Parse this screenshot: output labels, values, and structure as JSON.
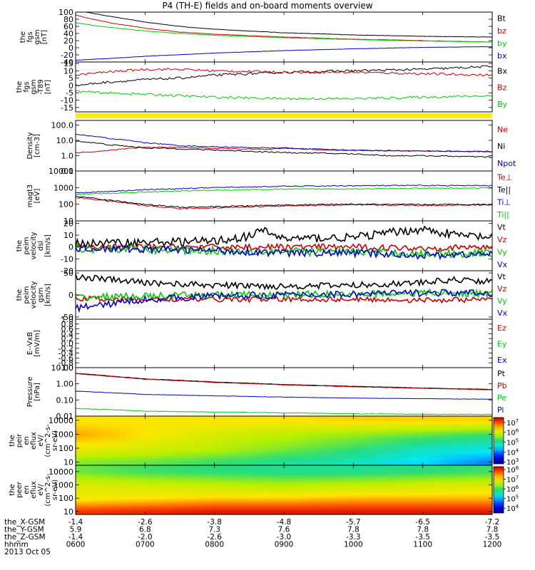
{
  "title": "P4 (TH-E) fields and on-board moments overview",
  "chart_data": [
    {
      "type": "line",
      "ylabel": [
        "the",
        "fgs",
        "gsm",
        "[nT]"
      ],
      "yticks": [
        -40,
        -20,
        0,
        20,
        40,
        60,
        80,
        100
      ],
      "ylim": [
        -40,
        100
      ],
      "series": [
        {
          "name": "Bt",
          "color": "#000000",
          "x": [
            600,
            620,
            650,
            700,
            750,
            800,
            900,
            1000,
            1100,
            1200
          ],
          "y": [
            105,
            98,
            88,
            72,
            60,
            52,
            42,
            36,
            32,
            30
          ],
          "noise": 0.5
        },
        {
          "name": "bz",
          "color": "#cc0000",
          "x": [
            600,
            620,
            650,
            700,
            750,
            800,
            900,
            1000,
            1100,
            1200
          ],
          "y": [
            92,
            82,
            70,
            55,
            44,
            38,
            30,
            24,
            20,
            16
          ],
          "noise": 0.5
        },
        {
          "name": "by",
          "color": "#00cc00",
          "x": [
            600,
            620,
            650,
            700,
            750,
            800,
            900,
            1000,
            1100,
            1200
          ],
          "y": [
            70,
            64,
            57,
            47,
            40,
            35,
            28,
            23,
            19,
            16
          ],
          "noise": 0.5
        },
        {
          "name": "bx",
          "color": "#0000cc",
          "x": [
            600,
            650,
            700,
            800,
            900,
            1000,
            1100,
            1200
          ],
          "y": [
            -35,
            -30,
            -24,
            -15,
            -8,
            -3,
            1,
            3
          ],
          "noise": 0.4
        }
      ]
    },
    {
      "type": "line",
      "ylabel": [
        "the",
        "fgs",
        "gsm",
        "-T89",
        "[nT]"
      ],
      "yticks": [
        -15,
        -10,
        -5,
        0,
        5,
        10,
        15
      ],
      "ylim": [
        -18,
        16
      ],
      "series": [
        {
          "name": "Bx",
          "color": "#000000",
          "x": [
            600,
            640,
            700,
            750,
            800,
            900,
            1000,
            1100,
            1200
          ],
          "y": [
            0,
            2,
            4,
            5,
            7,
            9,
            10,
            11,
            13
          ],
          "noise": 0.8
        },
        {
          "name": "Bz",
          "color": "#cc0000",
          "x": [
            600,
            640,
            700,
            750,
            800,
            900,
            1000,
            1100,
            1200
          ],
          "y": [
            7,
            9,
            11,
            11,
            10,
            9,
            9,
            8,
            7
          ],
          "noise": 0.8
        },
        {
          "name": "By",
          "color": "#00cc00",
          "x": [
            600,
            640,
            700,
            800,
            900,
            1000,
            1100,
            1200
          ],
          "y": [
            -4,
            -5,
            -6,
            -8,
            -9,
            -9,
            -8,
            -7
          ],
          "noise": 0.8
        }
      ]
    },
    {
      "type": "line",
      "log": true,
      "ylabel": [
        "Density",
        "[cm-3]"
      ],
      "ytick_labels": [
        "0.1",
        "1.0",
        "10.0",
        "100.0"
      ],
      "ytick_values": [
        0.1,
        1,
        10,
        100
      ],
      "ylim": [
        0.1,
        200
      ],
      "series": [
        {
          "name": "Ne",
          "color": "#cc0000",
          "x": [
            600,
            630,
            700,
            750,
            800,
            880,
            900,
            950,
            1000,
            1100,
            1200
          ],
          "y": [
            1.6,
            1.8,
            3.5,
            3.5,
            3.0,
            2.5,
            3.3,
            2.4,
            2.2,
            2.0,
            1.9
          ],
          "noise": 0.03
        },
        {
          "name": "Ni",
          "color": "#000000",
          "x": [
            600,
            650,
            700,
            750,
            800,
            900,
            1000,
            1050,
            1100,
            1150,
            1200
          ],
          "y": [
            9,
            5,
            3.2,
            2.8,
            2.3,
            1.6,
            1.3,
            1.0,
            1.0,
            0.9,
            0.8
          ],
          "noise": 0.04
        },
        {
          "name": "Npot",
          "color": "#0000cc",
          "x": [
            600,
            650,
            700,
            750,
            800,
            900,
            1000,
            1100,
            1200
          ],
          "y": [
            24,
            13,
            7,
            4.5,
            3.8,
            3.0,
            2.3,
            2.0,
            1.8
          ],
          "noise": 0.03
        }
      ]
    },
    {
      "type": "line",
      "log": true,
      "ylabel": [
        "magt3",
        "[eV]"
      ],
      "ytick_labels": [
        "10",
        "100",
        "1000",
        "10000"
      ],
      "ytick_values": [
        10,
        100,
        1000,
        10000
      ],
      "ylim": [
        10,
        10000
      ],
      "series": [
        {
          "name": "Te⊥",
          "color": "#cc0000",
          "x": [
            600,
            650,
            700,
            750,
            800,
            900,
            1000,
            1100,
            1200
          ],
          "y": [
            250,
            150,
            80,
            55,
            60,
            80,
            90,
            85,
            90
          ],
          "noise": 0.04
        },
        {
          "name": "Te||",
          "color": "#000000",
          "x": [
            600,
            650,
            700,
            750,
            800,
            900,
            1000,
            1100,
            1200
          ],
          "y": [
            300,
            170,
            95,
            65,
            70,
            90,
            100,
            95,
            100
          ],
          "noise": 0.04
        },
        {
          "name": "Ti⊥",
          "color": "#0000cc",
          "x": [
            600,
            650,
            700,
            800,
            900,
            1000,
            1100,
            1200
          ],
          "y": [
            480,
            600,
            750,
            1000,
            1200,
            1300,
            1350,
            1300
          ],
          "noise": 0.03
        },
        {
          "name": "Ti||",
          "color": "#00cc00",
          "x": [
            600,
            650,
            700,
            800,
            900,
            1000,
            1100,
            1200
          ],
          "y": [
            400,
            450,
            550,
            700,
            800,
            850,
            900,
            950
          ],
          "noise": 0.03
        }
      ]
    },
    {
      "type": "line",
      "ylabel": [
        "the",
        "peim",
        "velocity",
        "dsl",
        "[km/s]"
      ],
      "yticks": [
        -20,
        -10,
        0,
        10,
        20
      ],
      "ylim": [
        -20,
        22
      ],
      "series": [
        {
          "name": "Vt",
          "color": "#000000",
          "x": [
            600,
            700,
            800,
            850,
            870,
            900,
            1000,
            1050,
            1100,
            1150,
            1200
          ],
          "y": [
            3,
            4,
            5,
            9,
            14,
            7,
            8,
            12,
            15,
            10,
            8
          ],
          "noise": 3.5
        },
        {
          "name": "Vz",
          "color": "#cc0000",
          "x": [
            600,
            700,
            800,
            900,
            1000,
            1100,
            1200
          ],
          "y": [
            0,
            0,
            0,
            0,
            0,
            -1,
            0
          ],
          "noise": 2.5
        },
        {
          "name": "Vy",
          "color": "#00cc00",
          "x": [
            600,
            700,
            800,
            900,
            1000,
            1100,
            1200
          ],
          "y": [
            -1,
            -2,
            -3,
            -4,
            -4,
            -6,
            -5
          ],
          "noise": 3.5
        },
        {
          "name": "Vx",
          "color": "#0000cc",
          "x": [
            600,
            700,
            800,
            900,
            1000,
            1100,
            1200
          ],
          "y": [
            -1,
            -2,
            -3,
            -5,
            -5,
            -7,
            -6
          ],
          "noise": 3.0
        }
      ]
    },
    {
      "type": "line",
      "ylabel": [
        "the",
        "peim",
        "velocity",
        "gsm",
        "[km/s]"
      ],
      "yticks": [
        -50,
        0,
        50
      ],
      "ylim": [
        -55,
        55
      ],
      "series": [
        {
          "name": "Vt",
          "color": "#000000",
          "x": [
            600,
            650,
            700,
            800,
            900,
            1000,
            1100,
            1150,
            1200
          ],
          "y": [
            42,
            35,
            28,
            22,
            20,
            22,
            28,
            35,
            30
          ],
          "noise": 7
        },
        {
          "name": "Vz",
          "color": "#cc0000",
          "x": [
            600,
            700,
            800,
            900,
            1000,
            1100,
            1200
          ],
          "y": [
            -8,
            -10,
            -10,
            -10,
            -10,
            -12,
            -10
          ],
          "noise": 6
        },
        {
          "name": "Vy",
          "color": "#00cc00",
          "x": [
            600,
            700,
            800,
            900,
            1000,
            1100,
            1200
          ],
          "y": [
            -5,
            -3,
            0,
            0,
            2,
            5,
            3
          ],
          "noise": 8
        },
        {
          "name": "Vx",
          "color": "#0000cc",
          "x": [
            600,
            650,
            700,
            800,
            900,
            1000,
            1100,
            1200
          ],
          "y": [
            -30,
            -20,
            -10,
            -2,
            0,
            2,
            5,
            3
          ],
          "noise": 8
        }
      ]
    },
    {
      "type": "line",
      "ylabel": [
        "E--VxB",
        "[mV/m]"
      ],
      "yticks": [
        -1.0,
        -0.8,
        -0.6,
        -0.4,
        -0.2,
        0.0,
        0.2,
        0.4,
        0.6,
        0.8,
        1.0
      ],
      "ylim": [
        -1,
        1
      ],
      "series": [
        {
          "name": "Ez",
          "color": "#cc0000",
          "x": [],
          "y": []
        },
        {
          "name": "Ey",
          "color": "#00cc00",
          "x": [],
          "y": []
        },
        {
          "name": "Ex",
          "color": "#0000cc",
          "x": [],
          "y": []
        }
      ]
    },
    {
      "type": "line",
      "log": true,
      "ylabel": [
        "Pressure",
        "[nPa]"
      ],
      "ytick_labels": [
        "0.01",
        "0.10",
        "1.00",
        "10.00"
      ],
      "ytick_values": [
        0.01,
        0.1,
        1,
        10
      ],
      "ylim": [
        0.01,
        10
      ],
      "series": [
        {
          "name": "Pt",
          "color": "#000000",
          "x": [
            600,
            650,
            700,
            800,
            900,
            1000,
            1100,
            1200
          ],
          "y": [
            4.5,
            3.0,
            2.0,
            1.3,
            0.9,
            0.7,
            0.55,
            0.45
          ],
          "noise": 0.01
        },
        {
          "name": "Pb",
          "color": "#cc0000",
          "x": [
            600,
            650,
            700,
            800,
            900,
            1000,
            1100,
            1200
          ],
          "y": [
            4.2,
            2.8,
            1.9,
            1.2,
            0.85,
            0.65,
            0.52,
            0.42
          ],
          "noise": 0.01
        },
        {
          "name": "Pe",
          "color": "#00cc00",
          "x": [
            600,
            650,
            700,
            800,
            900,
            1000,
            1100,
            1200
          ],
          "y": [
            0.03,
            0.025,
            0.02,
            0.018,
            0.016,
            0.014,
            0.013,
            0.013
          ],
          "noise": 0.02
        },
        {
          "name": "Pi",
          "color": "#0000cc",
          "x": [
            600,
            650,
            700,
            800,
            900,
            1000,
            1100,
            1200
          ],
          "y": [
            0.35,
            0.28,
            0.22,
            0.18,
            0.15,
            0.13,
            0.12,
            0.11
          ],
          "noise": 0.01
        }
      ]
    },
    {
      "type": "heatmap",
      "ylabel": [
        "the",
        "peir",
        "en",
        "eflux",
        "eV/",
        "(cm^2-s-",
        "sr-eV)"
      ],
      "ytick_labels": [
        "10",
        "100",
        "1000",
        "10000"
      ],
      "ytick_values": [
        10,
        100,
        1000,
        10000
      ],
      "ylim": [
        6,
        20000
      ],
      "colorbar": {
        "tick_labels": [
          "10^3",
          "10^4",
          "10^5",
          "10^6",
          "10^7"
        ],
        "tick_values": [
          3,
          4,
          5,
          6,
          7
        ],
        "range": [
          2.8,
          7.5
        ]
      },
      "x": [
        600,
        700,
        800,
        900,
        1000,
        1100,
        1200
      ],
      "y": [
        10,
        100,
        1000,
        10000
      ],
      "z": [
        [
          5.5,
          5.4,
          5.2,
          5.0,
          4.8,
          4.4,
          4.0
        ],
        [
          6.2,
          6.0,
          5.8,
          5.5,
          5.2,
          4.8,
          4.6
        ],
        [
          6.6,
          6.3,
          6.0,
          5.8,
          5.6,
          5.4,
          5.2
        ],
        [
          6.3,
          6.3,
          6.3,
          6.3,
          6.4,
          6.4,
          6.4
        ]
      ]
    },
    {
      "type": "heatmap",
      "ylabel": [
        "the",
        "peer",
        "en",
        "eflux",
        "eV/",
        "(cm^2-s-",
        "sr-eV)"
      ],
      "ytick_labels": [
        "10",
        "100",
        "1000",
        "10000"
      ],
      "ytick_values": [
        10,
        100,
        1000,
        10000
      ],
      "ylim": [
        6,
        30000
      ],
      "colorbar": {
        "tick_labels": [
          "10^4",
          "10^5",
          "10^6",
          "10^7",
          "10^8"
        ],
        "tick_values": [
          4,
          5,
          6,
          7,
          8
        ],
        "range": [
          3.5,
          8.3
        ]
      },
      "x": [
        600,
        700,
        800,
        900,
        1000,
        1100,
        1200
      ],
      "y": [
        10,
        100,
        1000,
        10000
      ],
      "z": [
        [
          7.9,
          8.0,
          8.1,
          8.1,
          8.1,
          8.1,
          8.1
        ],
        [
          7.0,
          7.1,
          7.2,
          7.2,
          7.3,
          7.3,
          7.3
        ],
        [
          6.8,
          6.7,
          6.6,
          6.5,
          6.6,
          6.7,
          6.8
        ],
        [
          6.2,
          6.0,
          5.9,
          5.8,
          5.8,
          5.9,
          6.0
        ]
      ]
    }
  ],
  "x_axis": {
    "range": [
      600,
      1200
    ],
    "rows": [
      {
        "label": "the_X-GSM",
        "values": [
          "-1.4",
          "-2.6",
          "-3.8",
          "-4.8",
          "-5.7",
          "-6.5",
          "-7.2"
        ]
      },
      {
        "label": "the_Y-GSM",
        "values": [
          "5.9",
          "6.8",
          "7.3",
          "7.6",
          "7.8",
          "7.8",
          "7.8"
        ]
      },
      {
        "label": "the_Z-GSM",
        "values": [
          "-1.4",
          "-2.0",
          "-2.6",
          "-3.0",
          "-3.3",
          "-3.5",
          "-3.5"
        ]
      },
      {
        "label": "hhmm",
        "values": [
          "0600",
          "0700",
          "0800",
          "0900",
          "1000",
          "1100",
          "1200"
        ]
      }
    ],
    "date": "2013 Oct 05"
  },
  "quality_bar_color": "#ffee00"
}
